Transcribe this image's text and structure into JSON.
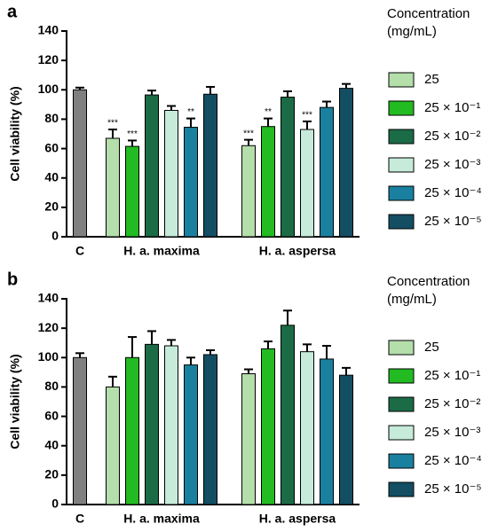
{
  "chart_data": [
    {
      "type": "bar",
      "panel_label": "a",
      "ylabel": "Cell viability (%)",
      "legend_title": "Concentration",
      "legend_subtitle": "(mg/mL)",
      "categories": [
        "C",
        "H. a. maxima",
        "H. a. aspersa"
      ],
      "ylim": [
        0,
        140
      ],
      "yticks": [
        0,
        20,
        40,
        60,
        80,
        100,
        120,
        140
      ],
      "control": {
        "color": "#808080",
        "values": [
          100,
          null,
          null
        ],
        "errors": [
          1.5,
          null,
          null
        ]
      },
      "series": [
        {
          "name": "25",
          "color": "#b4deaa",
          "values": [
            null,
            67,
            62
          ],
          "errors": [
            null,
            6,
            4
          ],
          "annotations": [
            null,
            "***",
            "***"
          ]
        },
        {
          "name": "25 × 10⁻¹",
          "color": "#22bb22",
          "values": [
            null,
            61.5,
            75
          ],
          "errors": [
            null,
            4,
            5.5
          ],
          "annotations": [
            null,
            "***",
            "**"
          ]
        },
        {
          "name": "25 × 10⁻²",
          "color": "#1b6b47",
          "values": [
            null,
            96.5,
            95
          ],
          "errors": [
            null,
            3,
            4
          ],
          "annotations": [
            null,
            null,
            null
          ]
        },
        {
          "name": "25 × 10⁻³",
          "color": "#c6ebda",
          "values": [
            null,
            86,
            73
          ],
          "errors": [
            null,
            3,
            5.5
          ],
          "annotations": [
            null,
            null,
            "***"
          ]
        },
        {
          "name": "25 × 10⁻⁴",
          "color": "#1a80a0",
          "values": [
            null,
            74.5,
            88
          ],
          "errors": [
            null,
            6,
            4
          ],
          "annotations": [
            null,
            "**",
            null
          ]
        },
        {
          "name": "25 × 10⁻⁵",
          "color": "#134e63",
          "values": [
            null,
            97,
            101
          ],
          "errors": [
            null,
            5,
            3
          ],
          "annotations": [
            null,
            null,
            null
          ]
        }
      ]
    },
    {
      "type": "bar",
      "panel_label": "b",
      "ylabel": "Cell viability (%)",
      "legend_title": "Concentration",
      "legend_subtitle": "(mg/mL)",
      "categories": [
        "C",
        "H. a. maxima",
        "H. a. aspersa"
      ],
      "ylim": [
        0,
        140
      ],
      "yticks": [
        0,
        20,
        40,
        60,
        80,
        100,
        120,
        140
      ],
      "control": {
        "color": "#808080",
        "values": [
          100,
          null,
          null
        ],
        "errors": [
          3,
          null,
          null
        ]
      },
      "series": [
        {
          "name": "25",
          "color": "#b4deaa",
          "values": [
            null,
            80,
            89
          ],
          "errors": [
            null,
            7,
            3
          ]
        },
        {
          "name": "25 × 10⁻¹",
          "color": "#22bb22",
          "values": [
            null,
            100,
            106
          ],
          "errors": [
            null,
            14,
            5
          ]
        },
        {
          "name": "25 × 10⁻²",
          "color": "#1b6b47",
          "values": [
            null,
            109,
            122
          ],
          "errors": [
            null,
            9,
            10
          ]
        },
        {
          "name": "25 × 10⁻³",
          "color": "#c6ebda",
          "values": [
            null,
            108,
            104
          ],
          "errors": [
            null,
            4,
            5
          ]
        },
        {
          "name": "25 × 10⁻⁴",
          "color": "#1a80a0",
          "values": [
            null,
            95,
            99
          ],
          "errors": [
            null,
            5,
            9
          ]
        },
        {
          "name": "25 × 10⁻⁵",
          "color": "#134e63",
          "values": [
            null,
            102,
            88
          ],
          "errors": [
            null,
            3,
            5
          ]
        }
      ]
    }
  ]
}
